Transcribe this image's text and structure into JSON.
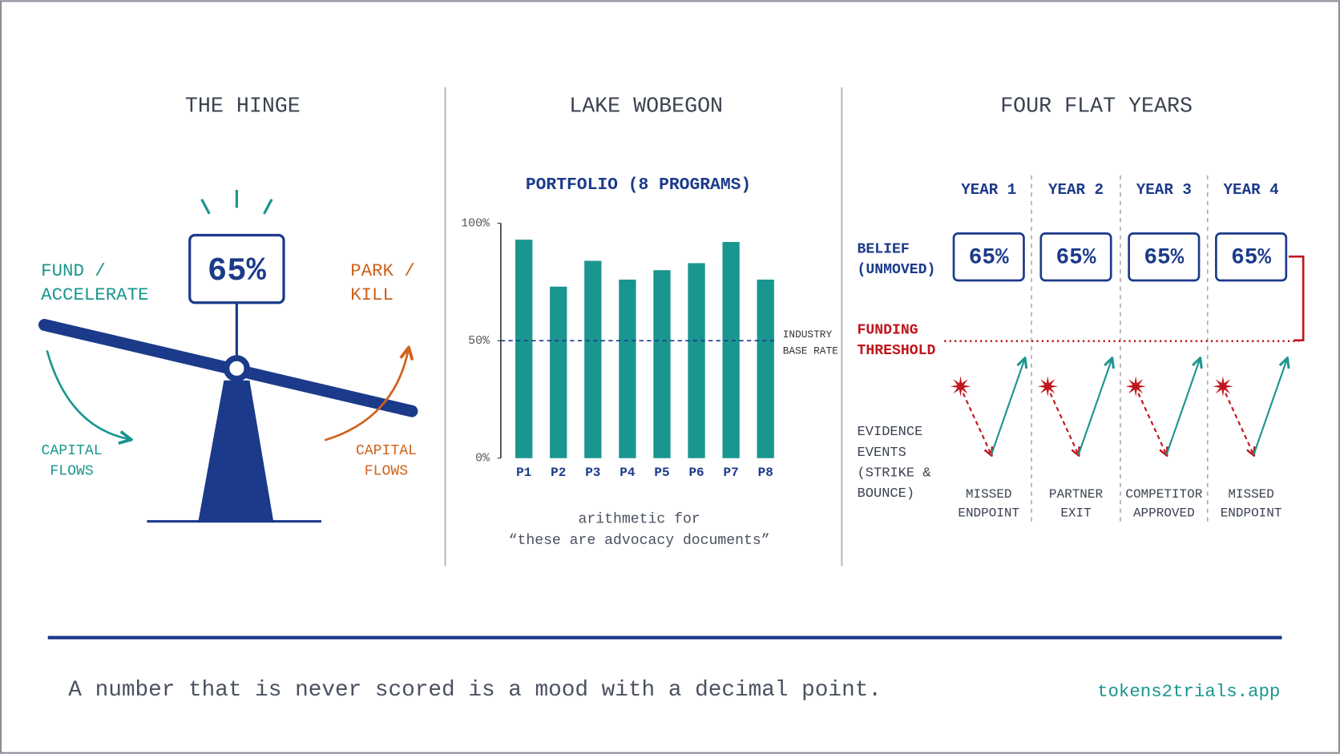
{
  "panel_hinge": {
    "title": "THE HINGE",
    "value": "65%",
    "left_label": [
      "FUND /",
      "ACCELERATE"
    ],
    "right_label": [
      "PARK /",
      "KILL"
    ],
    "left_flow": [
      "CAPITAL",
      "FLOWS"
    ],
    "right_flow": [
      "CAPITAL",
      "FLOWS"
    ]
  },
  "chart_data": {
    "type": "bar",
    "panel_title": "LAKE WOBEGON",
    "title": "PORTFOLIO (8 PROGRAMS)",
    "categories": [
      "P1",
      "P2",
      "P3",
      "P4",
      "P5",
      "P6",
      "P7",
      "P8"
    ],
    "values": [
      93,
      73,
      84,
      76,
      80,
      83,
      92,
      76
    ],
    "color": "#1a9690",
    "ylim": [
      0,
      100
    ],
    "yticks": [
      {
        "value": 0,
        "label": "0%"
      },
      {
        "value": 50,
        "label": "50%"
      },
      {
        "value": 100,
        "label": "100%"
      }
    ],
    "reference_line": {
      "value": 50,
      "label": [
        "INDUSTRY",
        "BASE RATE"
      ]
    },
    "caption": [
      "arithmetic for",
      "“these are advocacy documents”"
    ]
  },
  "panel_years": {
    "title": "FOUR FLAT YEARS",
    "belief_label": [
      "BELIEF",
      "(UNMOVED)"
    ],
    "threshold_label": [
      "FUNDING",
      "THRESHOLD"
    ],
    "evidence_label": [
      "EVIDENCE",
      "EVENTS",
      "(STRIKE &",
      "BOUNCE)"
    ],
    "years": [
      {
        "label": "YEAR 1",
        "belief": "65%",
        "event": [
          "MISSED",
          "ENDPOINT"
        ]
      },
      {
        "label": "YEAR 2",
        "belief": "65%",
        "event": [
          "PARTNER",
          "EXIT"
        ]
      },
      {
        "label": "YEAR 3",
        "belief": "65%",
        "event": [
          "COMPETITOR",
          "APPROVED"
        ]
      },
      {
        "label": "YEAR 4",
        "belief": "65%",
        "event": [
          "MISSED",
          "ENDPOINT"
        ]
      }
    ]
  },
  "footer": {
    "quote": "A number that is never scored is a mood with a decimal point.",
    "site": "tokens2trials.app"
  }
}
